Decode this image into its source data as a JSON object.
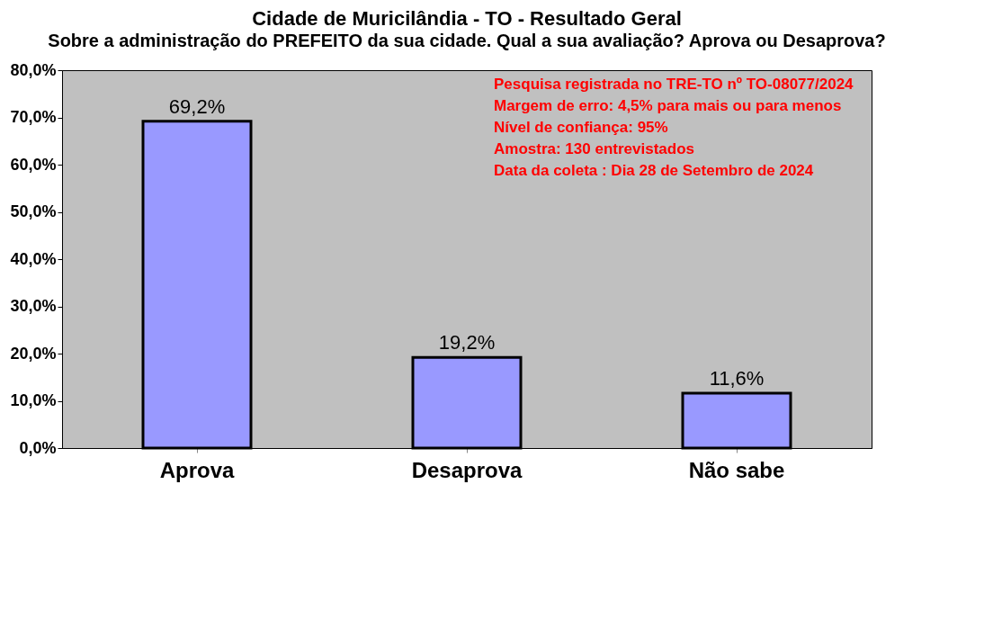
{
  "chart_data": {
    "type": "bar",
    "title": "Cidade de Muricilândia - TO - Resultado Geral",
    "subtitle": "Sobre a administração do PREFEITO da sua cidade. Qual a sua avaliação? Aprova ou Desaprova?",
    "categories": [
      "Aprova",
      "Desaprova",
      "Não sabe"
    ],
    "values": [
      69.2,
      19.2,
      11.6
    ],
    "value_labels": [
      "69,2%",
      "19,2%",
      "11,6%"
    ],
    "color": "#9999ff",
    "ylim": [
      0,
      80
    ],
    "yticks": [
      {
        "value": 0,
        "label": "0,0%"
      },
      {
        "value": 10,
        "label": "10,0%"
      },
      {
        "value": 20,
        "label": "20,0%"
      },
      {
        "value": 30,
        "label": "30,0%"
      },
      {
        "value": 40,
        "label": "40,0%"
      },
      {
        "value": 50,
        "label": "50,0%"
      },
      {
        "value": 60,
        "label": "60,0%"
      },
      {
        "value": 70,
        "label": "70,0%"
      },
      {
        "value": 80,
        "label": "80,0%"
      }
    ],
    "grid": false,
    "annotations": [
      "Pesquisa registrada no TRE-TO nº TO-08077/2024",
      "Margem de erro: 4,5% para mais ou para menos",
      "Nível de confiança: 95%",
      "Amostra: 130 entrevistados",
      "Data da coleta : Dia 28 de Setembro de 2024"
    ]
  }
}
